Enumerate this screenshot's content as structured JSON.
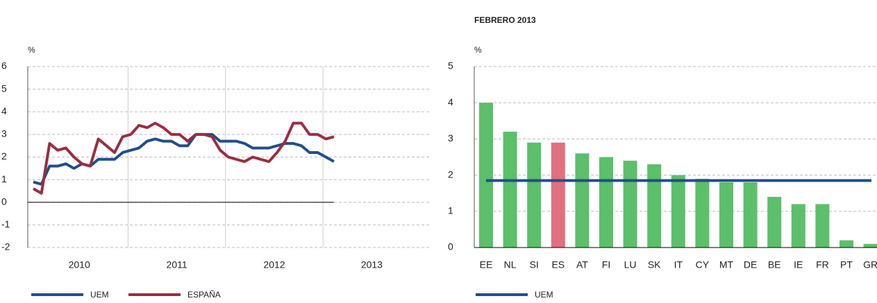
{
  "chart_data": [
    {
      "type": "line",
      "ylabel": "%",
      "categories": [
        "2010",
        null,
        null,
        null,
        null,
        null,
        null,
        null,
        null,
        null,
        null,
        null,
        "2011",
        null,
        null,
        null,
        null,
        null,
        null,
        null,
        null,
        null,
        null,
        null,
        "2012",
        null,
        null,
        null,
        null,
        null,
        null,
        null,
        null,
        null,
        null,
        null,
        "2013",
        null,
        null,
        null,
        null,
        null,
        null,
        null,
        null,
        null,
        null,
        null
      ],
      "series": [
        {
          "name": "UEM",
          "color": "#1f4e8c",
          "values": [
            0.9,
            0.8,
            1.6,
            1.6,
            1.7,
            1.5,
            1.7,
            1.6,
            1.9,
            1.9,
            1.9,
            2.2,
            2.3,
            2.4,
            2.7,
            2.8,
            2.7,
            2.7,
            2.5,
            2.5,
            3.0,
            3.0,
            3.0,
            2.7,
            2.7,
            2.7,
            2.6,
            2.4,
            2.4,
            2.4,
            2.5,
            2.6,
            2.6,
            2.5,
            2.2,
            2.2,
            2.0,
            1.8,
            null,
            null,
            null,
            null,
            null,
            null,
            null,
            null,
            null,
            null
          ]
        },
        {
          "name": "ESPAÑA",
          "color": "#9b2d3f",
          "values": [
            0.6,
            0.4,
            2.6,
            2.3,
            2.4,
            2.0,
            1.7,
            1.6,
            2.8,
            2.5,
            2.2,
            2.9,
            3.0,
            3.4,
            3.3,
            3.5,
            3.3,
            3.0,
            3.0,
            2.7,
            3.0,
            3.0,
            2.9,
            2.3,
            2.0,
            1.9,
            1.8,
            2.0,
            1.9,
            1.8,
            2.2,
            2.7,
            3.5,
            3.5,
            3.0,
            3.0,
            2.8,
            2.9,
            null,
            null,
            null,
            null,
            null,
            null,
            null,
            null,
            null,
            null
          ]
        }
      ],
      "ylim": [
        -2,
        6
      ],
      "yticks": [
        -2,
        -1,
        0,
        1,
        2,
        3,
        4,
        5,
        6
      ],
      "grid": true
    },
    {
      "type": "bar",
      "title": "FEBRERO 2013",
      "ylabel": "%",
      "categories": [
        "EE",
        "NL",
        "SI",
        "ES",
        "AT",
        "FI",
        "LU",
        "SK",
        "IT",
        "CY",
        "MT",
        "DE",
        "BE",
        "IE",
        "FR",
        "PT",
        "GR"
      ],
      "values": [
        4.0,
        3.2,
        2.9,
        2.9,
        2.6,
        2.5,
        2.4,
        2.3,
        2.0,
        1.9,
        1.8,
        1.8,
        1.4,
        1.2,
        1.2,
        0.2,
        0.1
      ],
      "colors": [
        "#5cbf6a",
        "#5cbf6a",
        "#5cbf6a",
        "#e07080",
        "#5cbf6a",
        "#5cbf6a",
        "#5cbf6a",
        "#5cbf6a",
        "#5cbf6a",
        "#5cbf6a",
        "#5cbf6a",
        "#5cbf6a",
        "#5cbf6a",
        "#5cbf6a",
        "#5cbf6a",
        "#5cbf6a",
        "#5cbf6a"
      ],
      "reference_line": {
        "name": "UEM",
        "value": 1.85,
        "color": "#1f4e8c"
      },
      "ylim": [
        0,
        5
      ],
      "yticks": [
        0,
        1,
        2,
        3,
        4,
        5
      ],
      "grid": true
    }
  ]
}
